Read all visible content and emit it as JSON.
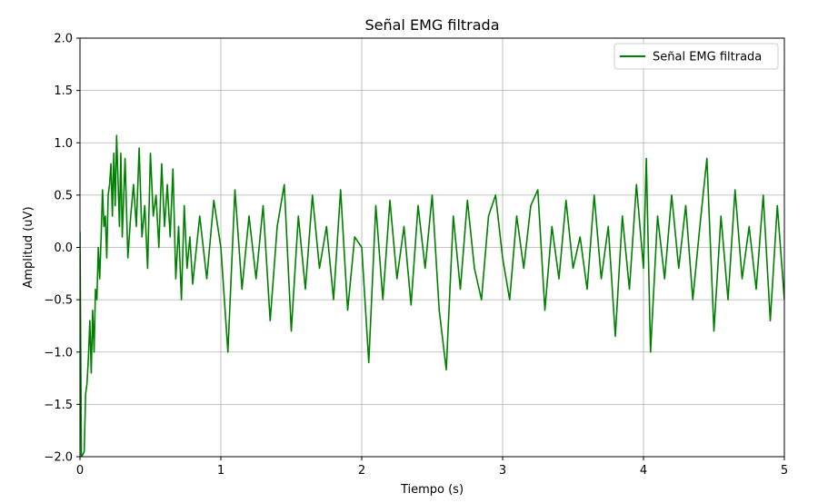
{
  "chart_data": {
    "type": "line",
    "title": "Señal EMG filtrada",
    "xlabel": "Tiempo (s)",
    "ylabel": "Amplitud (uV)",
    "xlim": [
      0,
      5
    ],
    "ylim": [
      -2.0,
      2.0
    ],
    "xticks": [
      0,
      1,
      2,
      3,
      4,
      5
    ],
    "xtick_labels": [
      "0",
      "1",
      "2",
      "3",
      "4",
      "5"
    ],
    "yticks": [
      -2.0,
      -1.5,
      -1.0,
      -0.5,
      0.0,
      0.5,
      1.0,
      1.5,
      2.0
    ],
    "ytick_labels": [
      "−2.0",
      "−1.5",
      "−1.0",
      "−0.5",
      "0.0",
      "0.5",
      "1.0",
      "1.5",
      "2.0"
    ],
    "grid": true,
    "legend_position": "top-right",
    "series": [
      {
        "name": "Señal EMG filtrada",
        "color": "#008000",
        "x": [
          0,
          0.01,
          0.02,
          0.03,
          0.04,
          0.05,
          0.06,
          0.07,
          0.08,
          0.09,
          0.1,
          0.11,
          0.12,
          0.13,
          0.14,
          0.15,
          0.16,
          0.17,
          0.18,
          0.19,
          0.2,
          0.21,
          0.22,
          0.23,
          0.24,
          0.25,
          0.26,
          0.27,
          0.28,
          0.29,
          0.3,
          0.32,
          0.34,
          0.36,
          0.38,
          0.4,
          0.42,
          0.44,
          0.46,
          0.48,
          0.5,
          0.52,
          0.54,
          0.56,
          0.58,
          0.6,
          0.62,
          0.64,
          0.66,
          0.68,
          0.7,
          0.72,
          0.74,
          0.76,
          0.78,
          0.8,
          0.85,
          0.9,
          0.95,
          1.0,
          1.05,
          1.1,
          1.15,
          1.2,
          1.25,
          1.3,
          1.35,
          1.4,
          1.45,
          1.5,
          1.55,
          1.6,
          1.65,
          1.7,
          1.75,
          1.8,
          1.85,
          1.9,
          1.95,
          2.0,
          2.05,
          2.1,
          2.15,
          2.2,
          2.25,
          2.3,
          2.35,
          2.4,
          2.45,
          2.5,
          2.55,
          2.6,
          2.65,
          2.7,
          2.75,
          2.8,
          2.85,
          2.9,
          2.95,
          3.0,
          3.05,
          3.1,
          3.15,
          3.2,
          3.25,
          3.3,
          3.35,
          3.4,
          3.45,
          3.5,
          3.55,
          3.6,
          3.65,
          3.7,
          3.75,
          3.8,
          3.85,
          3.9,
          3.95,
          4.0,
          4.02,
          4.05,
          4.1,
          4.15,
          4.2,
          4.25,
          4.3,
          4.35,
          4.4,
          4.45,
          4.5,
          4.55,
          4.6,
          4.65,
          4.7,
          4.75,
          4.8,
          4.85,
          4.9,
          4.95,
          5.0
        ],
        "y": [
          0.15,
          -2.0,
          -1.98,
          -1.95,
          -1.4,
          -1.3,
          -1.05,
          -0.7,
          -1.2,
          -0.6,
          -1.0,
          -0.4,
          -0.5,
          0.0,
          -0.3,
          0.1,
          0.55,
          0.2,
          0.3,
          -0.1,
          0.5,
          0.6,
          0.8,
          0.3,
          0.9,
          0.4,
          1.07,
          0.65,
          0.2,
          0.9,
          0.1,
          0.85,
          -0.1,
          0.3,
          0.6,
          0.2,
          0.95,
          0.1,
          0.4,
          -0.2,
          0.9,
          0.3,
          0.5,
          0.0,
          0.8,
          0.2,
          0.6,
          0.1,
          0.75,
          -0.3,
          0.2,
          -0.5,
          0.4,
          -0.2,
          0.1,
          -0.35,
          0.3,
          -0.3,
          0.45,
          0.0,
          -1.0,
          0.55,
          -0.4,
          0.3,
          -0.3,
          0.4,
          -0.7,
          0.2,
          0.6,
          -0.8,
          0.3,
          -0.4,
          0.5,
          -0.2,
          0.2,
          -0.5,
          0.55,
          -0.6,
          0.1,
          0.0,
          -1.1,
          0.4,
          -0.5,
          0.45,
          -0.3,
          0.2,
          -0.55,
          0.4,
          -0.2,
          0.5,
          -0.6,
          -1.17,
          0.3,
          -0.4,
          0.45,
          -0.2,
          -0.5,
          0.3,
          0.5,
          -0.1,
          -0.5,
          0.3,
          -0.2,
          0.4,
          0.55,
          -0.6,
          0.2,
          -0.3,
          0.45,
          -0.2,
          0.1,
          -0.4,
          0.5,
          -0.3,
          0.2,
          -0.85,
          0.3,
          -0.4,
          0.6,
          -0.2,
          0.85,
          -1.0,
          0.3,
          -0.3,
          0.5,
          -0.2,
          0.4,
          -0.5,
          0.2,
          0.85,
          -0.8,
          0.3,
          -0.5,
          0.55,
          -0.3,
          0.2,
          -0.4,
          0.5,
          -0.7,
          0.4,
          -0.5
        ]
      }
    ]
  }
}
